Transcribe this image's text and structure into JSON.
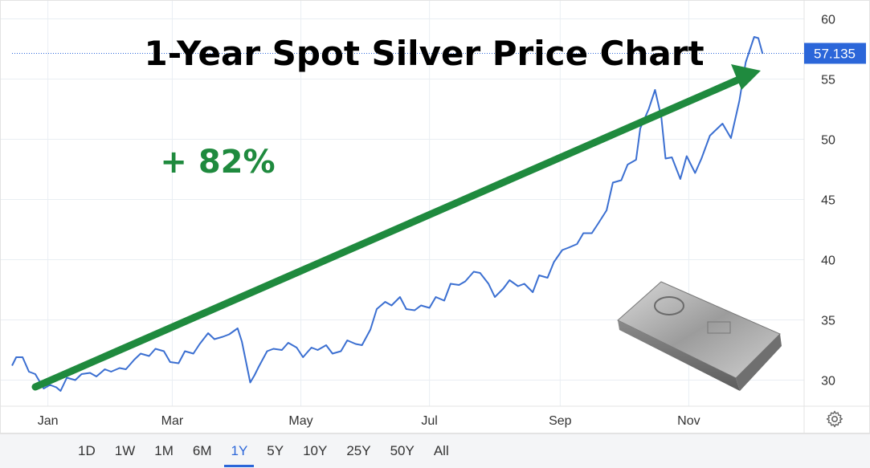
{
  "chart_data": {
    "type": "line",
    "title": "1-Year Spot Silver Price Chart",
    "annotation": "+ 82%",
    "current_price": "57.135",
    "xlabel": "",
    "ylabel": "",
    "ylim": [
      25.5,
      61.5
    ],
    "yticks": [
      30,
      35,
      40,
      45,
      50,
      55,
      60
    ],
    "xlim": [
      "2024-12-15",
      "2025-12-20"
    ],
    "x_tick_labels": [
      {
        "date": "2025-01-01",
        "label": "Jan"
      },
      {
        "date": "2025-03-01",
        "label": "Mar"
      },
      {
        "date": "2025-05-01",
        "label": "May"
      },
      {
        "date": "2025-07-01",
        "label": "Jul"
      },
      {
        "date": "2025-09-01",
        "label": "Sep"
      },
      {
        "date": "2025-11-01",
        "label": "Nov"
      }
    ],
    "grid": true,
    "series": [
      {
        "color": "#3b6fd1",
        "points": [
          [
            "2024-12-15",
            31.2
          ],
          [
            "2024-12-17",
            31.9
          ],
          [
            "2024-12-20",
            31.9
          ],
          [
            "2024-12-23",
            30.7
          ],
          [
            "2024-12-26",
            30.5
          ],
          [
            "2024-12-30",
            29.3
          ],
          [
            "2025-01-02",
            29.6
          ],
          [
            "2025-01-05",
            29.4
          ],
          [
            "2025-01-07",
            29.1
          ],
          [
            "2025-01-10",
            30.2
          ],
          [
            "2025-01-14",
            30.0
          ],
          [
            "2025-01-17",
            30.5
          ],
          [
            "2025-01-21",
            30.6
          ],
          [
            "2025-01-24",
            30.3
          ],
          [
            "2025-01-28",
            30.9
          ],
          [
            "2025-01-31",
            30.7
          ],
          [
            "2025-02-04",
            31.0
          ],
          [
            "2025-02-07",
            30.9
          ],
          [
            "2025-02-11",
            31.7
          ],
          [
            "2025-02-14",
            32.2
          ],
          [
            "2025-02-18",
            32.0
          ],
          [
            "2025-02-21",
            32.6
          ],
          [
            "2025-02-25",
            32.4
          ],
          [
            "2025-02-28",
            31.5
          ],
          [
            "2025-03-04",
            31.4
          ],
          [
            "2025-03-07",
            32.4
          ],
          [
            "2025-03-11",
            32.2
          ],
          [
            "2025-03-14",
            33.0
          ],
          [
            "2025-03-18",
            33.9
          ],
          [
            "2025-03-21",
            33.4
          ],
          [
            "2025-03-25",
            33.6
          ],
          [
            "2025-03-28",
            33.8
          ],
          [
            "2025-04-01",
            34.3
          ],
          [
            "2025-04-03",
            33.2
          ],
          [
            "2025-04-05",
            31.5
          ],
          [
            "2025-04-07",
            29.8
          ],
          [
            "2025-04-09",
            30.4
          ],
          [
            "2025-04-11",
            31.1
          ],
          [
            "2025-04-15",
            32.4
          ],
          [
            "2025-04-18",
            32.6
          ],
          [
            "2025-04-22",
            32.5
          ],
          [
            "2025-04-25",
            33.1
          ],
          [
            "2025-04-29",
            32.7
          ],
          [
            "2025-05-02",
            31.9
          ],
          [
            "2025-05-06",
            32.7
          ],
          [
            "2025-05-09",
            32.5
          ],
          [
            "2025-05-13",
            32.9
          ],
          [
            "2025-05-16",
            32.2
          ],
          [
            "2025-05-20",
            32.4
          ],
          [
            "2025-05-23",
            33.3
          ],
          [
            "2025-05-27",
            33.0
          ],
          [
            "2025-05-30",
            32.9
          ],
          [
            "2025-06-03",
            34.2
          ],
          [
            "2025-06-06",
            35.9
          ],
          [
            "2025-06-10",
            36.5
          ],
          [
            "2025-06-13",
            36.2
          ],
          [
            "2025-06-17",
            36.9
          ],
          [
            "2025-06-20",
            35.9
          ],
          [
            "2025-06-24",
            35.8
          ],
          [
            "2025-06-27",
            36.2
          ],
          [
            "2025-07-01",
            36.0
          ],
          [
            "2025-07-04",
            36.9
          ],
          [
            "2025-07-08",
            36.6
          ],
          [
            "2025-07-11",
            38.0
          ],
          [
            "2025-07-15",
            37.9
          ],
          [
            "2025-07-18",
            38.2
          ],
          [
            "2025-07-22",
            39.0
          ],
          [
            "2025-07-25",
            38.9
          ],
          [
            "2025-07-29",
            38.0
          ],
          [
            "2025-08-01",
            36.9
          ],
          [
            "2025-08-05",
            37.6
          ],
          [
            "2025-08-08",
            38.3
          ],
          [
            "2025-08-12",
            37.8
          ],
          [
            "2025-08-15",
            38.0
          ],
          [
            "2025-08-19",
            37.3
          ],
          [
            "2025-08-22",
            38.7
          ],
          [
            "2025-08-26",
            38.5
          ],
          [
            "2025-08-29",
            39.8
          ],
          [
            "2025-09-02",
            40.8
          ],
          [
            "2025-09-05",
            41.0
          ],
          [
            "2025-09-09",
            41.3
          ],
          [
            "2025-09-12",
            42.2
          ],
          [
            "2025-09-16",
            42.2
          ],
          [
            "2025-09-19",
            43.0
          ],
          [
            "2025-09-23",
            44.1
          ],
          [
            "2025-09-26",
            46.4
          ],
          [
            "2025-09-30",
            46.6
          ],
          [
            "2025-10-03",
            47.9
          ],
          [
            "2025-10-07",
            48.3
          ],
          [
            "2025-10-09",
            50.9
          ],
          [
            "2025-10-13",
            52.5
          ],
          [
            "2025-10-16",
            54.1
          ],
          [
            "2025-10-19",
            51.8
          ],
          [
            "2025-10-21",
            48.4
          ],
          [
            "2025-10-24",
            48.5
          ],
          [
            "2025-10-28",
            46.7
          ],
          [
            "2025-10-31",
            48.6
          ],
          [
            "2025-11-04",
            47.2
          ],
          [
            "2025-11-07",
            48.4
          ],
          [
            "2025-11-11",
            50.3
          ],
          [
            "2025-11-14",
            50.8
          ],
          [
            "2025-11-17",
            51.3
          ],
          [
            "2025-11-21",
            50.1
          ],
          [
            "2025-11-25",
            53.2
          ],
          [
            "2025-11-28",
            56.4
          ],
          [
            "2025-12-02",
            58.5
          ],
          [
            "2025-12-04",
            58.4
          ],
          [
            "2025-12-06",
            57.1
          ]
        ]
      }
    ]
  },
  "price_badge_color": "#2b66d9",
  "trend_arrow_color": "#1f8a3e",
  "range_buttons": [
    {
      "label": "1D",
      "active": false
    },
    {
      "label": "1W",
      "active": false
    },
    {
      "label": "1M",
      "active": false
    },
    {
      "label": "6M",
      "active": false
    },
    {
      "label": "1Y",
      "active": true
    },
    {
      "label": "5Y",
      "active": false
    },
    {
      "label": "10Y",
      "active": false
    },
    {
      "label": "25Y",
      "active": false
    },
    {
      "label": "50Y",
      "active": false
    },
    {
      "label": "All",
      "active": false
    }
  ],
  "settings_icon": "gear-icon",
  "decorative_image": "silver-bar-image"
}
